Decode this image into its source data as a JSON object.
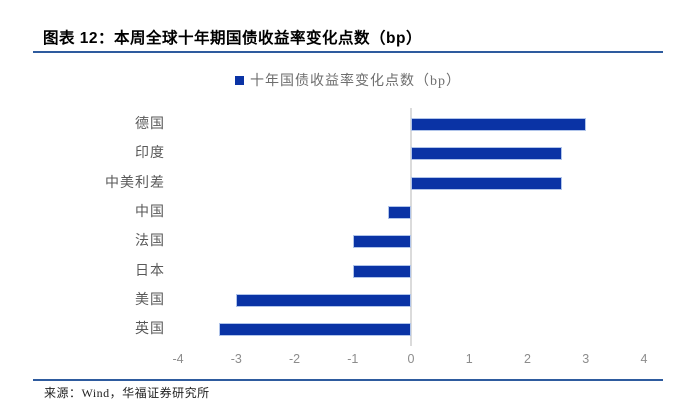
{
  "header": {
    "title": "图表 12：本周全球十年期国债收益率变化点数（bp）"
  },
  "legend": {
    "label": "十年国债收益率变化点数（bp）"
  },
  "chart_data": {
    "type": "bar",
    "orientation": "horizontal",
    "title": "图表 12：本周全球十年期国债收益率变化点数（bp）",
    "series_name": "十年国债收益率变化点数（bp）",
    "categories": [
      "德国",
      "印度",
      "中美利差",
      "中国",
      "法国",
      "日本",
      "美国",
      "英国"
    ],
    "values": [
      3.0,
      2.6,
      2.6,
      -0.4,
      -1.0,
      -1.0,
      -3.0,
      -3.3
    ],
    "xlabel": "",
    "ylabel": "",
    "xlim": [
      -4,
      4
    ],
    "xticks": [
      -4,
      -3,
      -2,
      -1,
      0,
      1,
      2,
      3,
      4
    ],
    "grid": "off",
    "legend_position": "top-center",
    "zero_axis_line": true
  },
  "footer": {
    "source": "来源：Wind，华福证券研究所"
  },
  "colors": {
    "bar": "#0A33A5",
    "bar_border": "#B0C4EA",
    "accent_line": "#2E5B9E",
    "category_text": "#595959",
    "legend_text": "#6E6E6E",
    "tick_text": "#8C8C8C",
    "zero_line": "#DBDBDB",
    "title_text": "#000000"
  }
}
